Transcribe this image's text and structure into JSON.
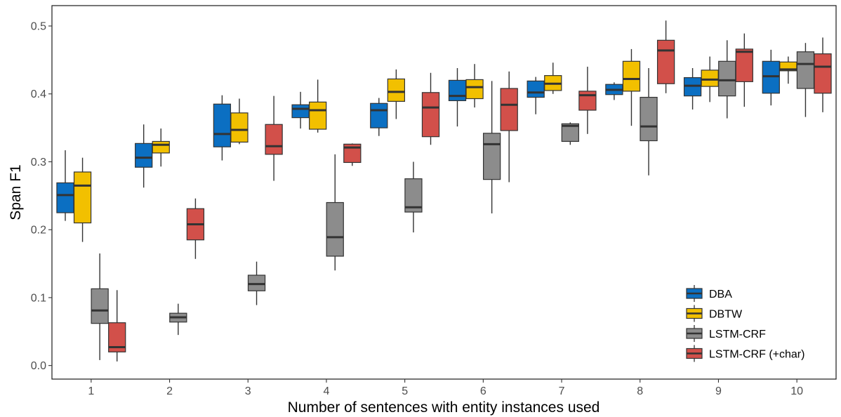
{
  "chart_data": {
    "type": "boxplot",
    "xlabel": "Number of sentences with entity instances used",
    "ylabel": "Span F1",
    "ylim": [
      -0.02,
      0.53
    ],
    "y_ticks": [
      0.0,
      0.1,
      0.2,
      0.3,
      0.4,
      0.5
    ],
    "y_tick_labels": [
      "0.0",
      "0.1",
      "0.2",
      "0.3",
      "0.4",
      "0.5"
    ],
    "categories": [
      "1",
      "2",
      "3",
      "4",
      "5",
      "6",
      "7",
      "8",
      "9",
      "10"
    ],
    "grid": false,
    "legend_position": "bottom-right",
    "series": [
      {
        "name": "DBA",
        "color": "#0b6fc2",
        "boxes": [
          {
            "min": 0.213,
            "q1": 0.225,
            "median": 0.251,
            "q3": 0.269,
            "max": 0.317
          },
          {
            "min": 0.262,
            "q1": 0.292,
            "median": 0.306,
            "q3": 0.327,
            "max": 0.355
          },
          {
            "min": 0.302,
            "q1": 0.322,
            "median": 0.341,
            "q3": 0.385,
            "max": 0.398
          },
          {
            "min": 0.349,
            "q1": 0.365,
            "median": 0.378,
            "q3": 0.384,
            "max": 0.403
          },
          {
            "min": 0.338,
            "q1": 0.35,
            "median": 0.376,
            "q3": 0.386,
            "max": 0.394
          },
          {
            "min": 0.352,
            "q1": 0.39,
            "median": 0.397,
            "q3": 0.42,
            "max": 0.438
          },
          {
            "min": 0.37,
            "q1": 0.395,
            "median": 0.402,
            "q3": 0.419,
            "max": 0.425
          },
          {
            "min": 0.391,
            "q1": 0.399,
            "median": 0.406,
            "q3": 0.414,
            "max": 0.417
          },
          {
            "min": 0.377,
            "q1": 0.397,
            "median": 0.412,
            "q3": 0.424,
            "max": 0.438
          },
          {
            "min": 0.383,
            "q1": 0.401,
            "median": 0.426,
            "q3": 0.448,
            "max": 0.465
          }
        ]
      },
      {
        "name": "DBTW",
        "color": "#f2c000",
        "boxes": [
          {
            "min": 0.182,
            "q1": 0.21,
            "median": 0.265,
            "q3": 0.285,
            "max": 0.306
          },
          {
            "min": 0.293,
            "q1": 0.313,
            "median": 0.325,
            "q3": 0.33,
            "max": 0.349
          },
          {
            "min": 0.326,
            "q1": 0.329,
            "median": 0.347,
            "q3": 0.372,
            "max": 0.393
          },
          {
            "min": 0.343,
            "q1": 0.348,
            "median": 0.376,
            "q3": 0.388,
            "max": 0.421
          },
          {
            "min": 0.363,
            "q1": 0.389,
            "median": 0.403,
            "q3": 0.422,
            "max": 0.436
          },
          {
            "min": 0.38,
            "q1": 0.393,
            "median": 0.41,
            "q3": 0.421,
            "max": 0.444
          },
          {
            "min": 0.4,
            "q1": 0.405,
            "median": 0.415,
            "q3": 0.427,
            "max": 0.446
          },
          {
            "min": 0.353,
            "q1": 0.404,
            "median": 0.422,
            "q3": 0.448,
            "max": 0.466
          },
          {
            "min": 0.388,
            "q1": 0.411,
            "median": 0.421,
            "q3": 0.435,
            "max": 0.455
          },
          {
            "min": 0.415,
            "q1": 0.434,
            "median": 0.436,
            "q3": 0.447,
            "max": 0.455
          }
        ]
      },
      {
        "name": "LSTM-CRF",
        "color": "#8c8c8c",
        "boxes": [
          {
            "min": 0.008,
            "q1": 0.062,
            "median": 0.081,
            "q3": 0.113,
            "max": 0.165
          },
          {
            "min": 0.045,
            "q1": 0.064,
            "median": 0.071,
            "q3": 0.077,
            "max": 0.091
          },
          {
            "min": 0.089,
            "q1": 0.11,
            "median": 0.12,
            "q3": 0.133,
            "max": 0.153
          },
          {
            "min": 0.14,
            "q1": 0.161,
            "median": 0.189,
            "q3": 0.24,
            "max": 0.311
          },
          {
            "min": 0.196,
            "q1": 0.226,
            "median": 0.233,
            "q3": 0.275,
            "max": 0.3
          },
          {
            "min": 0.224,
            "q1": 0.274,
            "median": 0.326,
            "q3": 0.342,
            "max": 0.419
          },
          {
            "min": 0.325,
            "q1": 0.33,
            "median": 0.353,
            "q3": 0.356,
            "max": 0.358
          },
          {
            "min": 0.28,
            "q1": 0.331,
            "median": 0.352,
            "q3": 0.395,
            "max": 0.438
          },
          {
            "min": 0.364,
            "q1": 0.397,
            "median": 0.42,
            "q3": 0.448,
            "max": 0.479
          },
          {
            "min": 0.366,
            "q1": 0.408,
            "median": 0.444,
            "q3": 0.462,
            "max": 0.475
          }
        ]
      },
      {
        "name": "LSTM-CRF (+char)",
        "color": "#d2504a",
        "boxes": [
          {
            "min": 0.006,
            "q1": 0.02,
            "median": 0.027,
            "q3": 0.063,
            "max": 0.111
          },
          {
            "min": 0.157,
            "q1": 0.185,
            "median": 0.208,
            "q3": 0.231,
            "max": 0.246
          },
          {
            "min": 0.272,
            "q1": 0.311,
            "median": 0.323,
            "q3": 0.355,
            "max": 0.397
          },
          {
            "min": 0.294,
            "q1": 0.299,
            "median": 0.321,
            "q3": 0.326,
            "max": 0.327
          },
          {
            "min": 0.325,
            "q1": 0.337,
            "median": 0.38,
            "q3": 0.402,
            "max": 0.431
          },
          {
            "min": 0.27,
            "q1": 0.346,
            "median": 0.384,
            "q3": 0.408,
            "max": 0.433
          },
          {
            "min": 0.341,
            "q1": 0.376,
            "median": 0.398,
            "q3": 0.404,
            "max": 0.44
          },
          {
            "min": 0.401,
            "q1": 0.415,
            "median": 0.464,
            "q3": 0.479,
            "max": 0.508
          },
          {
            "min": 0.381,
            "q1": 0.418,
            "median": 0.462,
            "q3": 0.466,
            "max": 0.489
          },
          {
            "min": 0.373,
            "q1": 0.401,
            "median": 0.44,
            "q3": 0.459,
            "max": 0.483
          }
        ]
      }
    ]
  }
}
